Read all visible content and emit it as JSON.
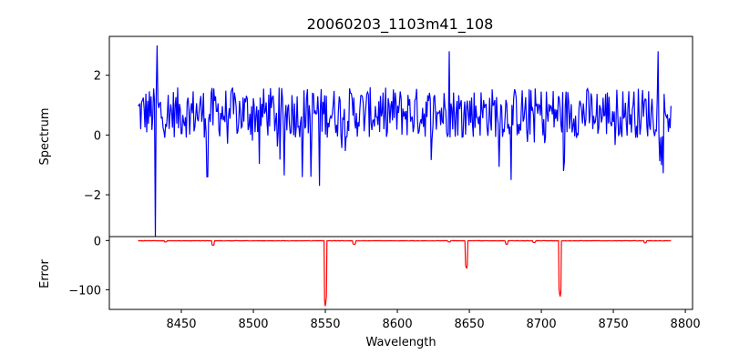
{
  "chart_data": [
    {
      "type": "line",
      "title": "20060203_1103m41_108",
      "xlabel": "",
      "ylabel": "Spectrum",
      "xlim": [
        8400,
        8805
      ],
      "ylim": [
        -3.4,
        3.3
      ],
      "yticks": [
        2,
        0,
        -2
      ],
      "ytick_labels": [
        "2",
        "0",
        "−2"
      ],
      "series": [
        {
          "color": "#0000ff",
          "x_start": 8420,
          "x_end": 8790,
          "baseline": 0.75,
          "noise_amplitude": 0.85,
          "features": [
            {
              "x": 8432,
              "y": -3.4
            },
            {
              "x": 8433,
              "y": 3.0
            },
            {
              "x": 8546,
              "y": -1.7
            },
            {
              "x": 8636,
              "y": 2.8
            },
            {
              "x": 8781,
              "y": 2.8
            },
            {
              "x": 8468,
              "y": -1.4
            },
            {
              "x": 8540,
              "y": -1.4
            }
          ]
        }
      ]
    },
    {
      "type": "line",
      "title": "",
      "xlabel": "Wavelength",
      "ylabel": "Error",
      "xlim": [
        8400,
        8805
      ],
      "ylim": [
        -140,
        8
      ],
      "xticks": [
        8450,
        8500,
        8550,
        8600,
        8650,
        8700,
        8750,
        8800
      ],
      "xtick_labels": [
        "8450",
        "8500",
        "8550",
        "8600",
        "8650",
        "8700",
        "8750",
        "8800"
      ],
      "yticks": [
        0,
        -100
      ],
      "ytick_labels": [
        "0",
        "−100"
      ],
      "series": [
        {
          "color": "#ff0000",
          "x_start": 8420,
          "x_end": 8790,
          "baseline": -0.5,
          "dips": [
            {
              "x": 8439,
              "y": -3
            },
            {
              "x": 8472,
              "y": -10
            },
            {
              "x": 8550,
              "y": -136
            },
            {
              "x": 8570,
              "y": -8
            },
            {
              "x": 8636,
              "y": -3
            },
            {
              "x": 8648,
              "y": -58
            },
            {
              "x": 8676,
              "y": -8
            },
            {
              "x": 8695,
              "y": -4
            },
            {
              "x": 8713,
              "y": -117
            },
            {
              "x": 8772,
              "y": -5
            }
          ]
        }
      ]
    }
  ]
}
